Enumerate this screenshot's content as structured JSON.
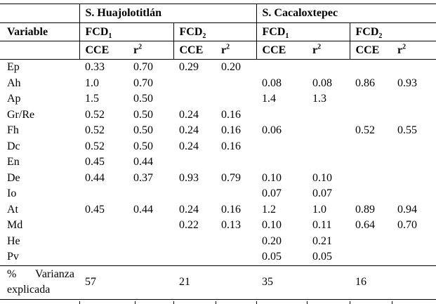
{
  "table": {
    "site1": "S. Huajolotitlán",
    "site2": "S. Cacaloxtepec",
    "variable_header": "Variable",
    "col_fcd": {
      "base": "FCD",
      "sub1": "1",
      "sub2": "2"
    },
    "col_cce": "CCE",
    "col_r": {
      "base": "r",
      "sup": "2"
    },
    "rows": [
      {
        "variable": "Ep",
        "values": [
          "0.33",
          "0.70",
          "0.29",
          "0.20",
          "",
          "",
          "",
          ""
        ]
      },
      {
        "variable": "Ah",
        "values": [
          "1.0",
          "0.70",
          "",
          "",
          "0.08",
          "0.08",
          "0.86",
          "0.93"
        ]
      },
      {
        "variable": "Ap",
        "values": [
          "1.5",
          "0.50",
          "",
          "",
          "1.4",
          "1.3",
          "",
          ""
        ]
      },
      {
        "variable": "Gr/Re",
        "values": [
          "0.52",
          "0.50",
          "0.24",
          "0.16",
          "",
          "",
          "",
          ""
        ]
      },
      {
        "variable": "Fh",
        "values": [
          "0.52",
          "0.50",
          "0.24",
          "0.16",
          "0.06",
          "",
          "0.52",
          "0.55"
        ]
      },
      {
        "variable": "Dc",
        "values": [
          "0.52",
          "0.50",
          "0.24",
          "0.16",
          "",
          "",
          "",
          ""
        ]
      },
      {
        "variable": "En",
        "values": [
          "0.45",
          "0.44",
          "",
          "",
          "",
          "",
          "",
          ""
        ]
      },
      {
        "variable": "De",
        "values": [
          "0.44",
          "0.37",
          "0.93",
          "0.79",
          "0.10",
          "0.10",
          "",
          ""
        ]
      },
      {
        "variable": "Io",
        "values": [
          "",
          "",
          "",
          "",
          "0.07",
          "0.07",
          "",
          ""
        ]
      },
      {
        "variable": "At",
        "values": [
          "0.45",
          "0.44",
          "0.24",
          "0.16",
          "1.2",
          "1.0",
          "0.89",
          "0.94"
        ]
      },
      {
        "variable": "Md",
        "values": [
          "",
          "",
          "0.22",
          "0.13",
          "0.10",
          "0.11",
          "0.64",
          "0.70"
        ]
      },
      {
        "variable": "He",
        "values": [
          "",
          "",
          "",
          "",
          "0.20",
          "0.21",
          "",
          ""
        ]
      },
      {
        "variable": "Pv",
        "values": [
          "",
          "",
          "",
          "",
          "0.05",
          "0.05",
          "",
          ""
        ]
      }
    ],
    "footer": {
      "label_word1": "%",
      "label_word2": "Varianza",
      "label_line2": "explicada",
      "values": [
        "57",
        "",
        "21",
        "",
        "35",
        "",
        "16",
        ""
      ]
    }
  }
}
